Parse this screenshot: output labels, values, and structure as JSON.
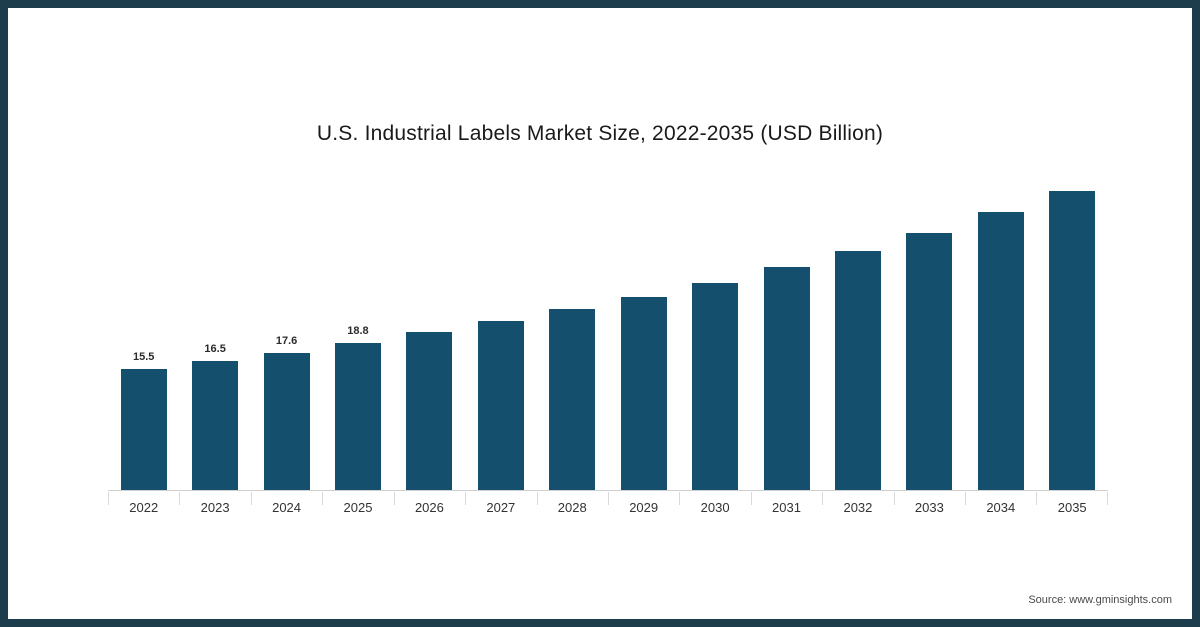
{
  "title": "U.S. Industrial Labels Market Size, 2022-2035 (USD Billion)",
  "source_note": "Source: www.gminsights.com",
  "colors": {
    "frame_border": "#1d3d4d",
    "bar": "#14506e",
    "axis": "#cfcfcf",
    "tick": "#d9d9d9"
  },
  "chart_data": {
    "type": "bar",
    "title": "U.S. Industrial Labels Market Size, 2022-2035 (USD Billion)",
    "unit": "USD Billion",
    "categories": [
      "2022",
      "2023",
      "2024",
      "2025",
      "2026",
      "2027",
      "2028",
      "2029",
      "2030",
      "2031",
      "2032",
      "2033",
      "2034",
      "2035"
    ],
    "values": [
      15.5,
      16.5,
      17.6,
      18.8,
      20.3,
      21.7,
      23.2,
      24.7,
      26.6,
      28.6,
      30.7,
      33.0,
      35.6,
      38.3
    ],
    "value_labels": [
      "15.5",
      "16.5",
      "17.6",
      "18.8",
      null,
      null,
      null,
      null,
      null,
      null,
      null,
      null,
      null,
      null
    ],
    "xlabel": "",
    "ylabel": "",
    "ylim": [
      0,
      40
    ],
    "grid": false,
    "legend": "none",
    "bar_color": "#14506e"
  }
}
